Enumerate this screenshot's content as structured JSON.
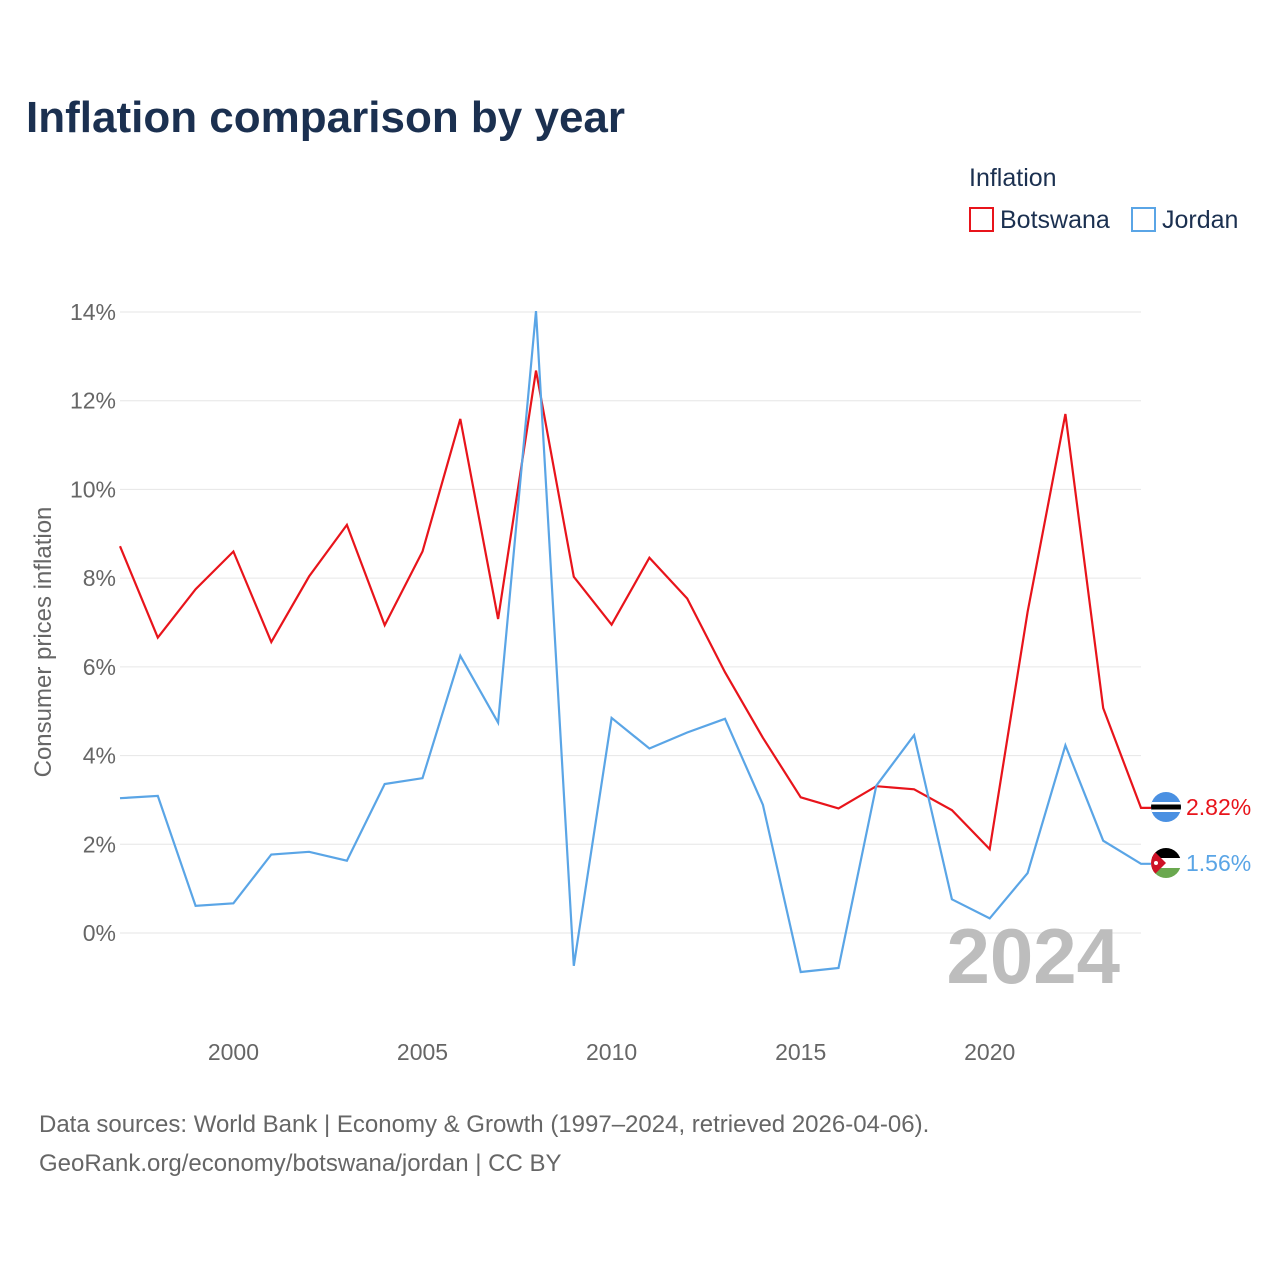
{
  "chart_data": {
    "type": "line",
    "title": "Inflation comparison by year",
    "legend_title": "Inflation",
    "legend_position": "top-right",
    "xlabel": "",
    "ylabel": "Consumer prices inflation",
    "xlim": [
      1997,
      2024
    ],
    "ylim": [
      -2,
      14
    ],
    "x_ticks": [
      2000,
      2005,
      2010,
      2015,
      2020
    ],
    "y_ticks": [
      0,
      2,
      4,
      6,
      8,
      10,
      12,
      14
    ],
    "y_tick_format": "percent",
    "grid": true,
    "highlight_year": "2024",
    "x": [
      1997,
      1998,
      1999,
      2000,
      2001,
      2002,
      2003,
      2004,
      2005,
      2006,
      2007,
      2008,
      2009,
      2010,
      2011,
      2012,
      2013,
      2014,
      2015,
      2016,
      2017,
      2018,
      2019,
      2020,
      2021,
      2022,
      2023,
      2024
    ],
    "series": [
      {
        "name": "Botswana",
        "color": "#e8141b",
        "end_label": "2.82%",
        "flag": "botswana-flag",
        "values": [
          8.72,
          6.66,
          7.75,
          8.6,
          6.56,
          8.04,
          9.2,
          6.94,
          8.6,
          11.59,
          7.08,
          12.68,
          8.03,
          6.95,
          8.46,
          7.54,
          5.88,
          4.4,
          3.06,
          2.81,
          3.31,
          3.24,
          2.77,
          1.89,
          7.24,
          11.7,
          5.07,
          2.82
        ]
      },
      {
        "name": "Jordan",
        "color": "#5aa5e6",
        "end_label": "1.56%",
        "flag": "jordan-flag",
        "values": [
          3.04,
          3.09,
          0.61,
          0.67,
          1.77,
          1.83,
          1.63,
          3.36,
          3.49,
          6.25,
          4.74,
          14.02,
          -0.74,
          4.85,
          4.16,
          4.52,
          4.83,
          2.89,
          -0.88,
          -0.79,
          3.32,
          4.46,
          0.76,
          0.33,
          1.35,
          4.23,
          2.08,
          1.56
        ]
      }
    ]
  },
  "source": {
    "line1": "Data sources: World Bank | Economy & Growth (1997–2024, retrieved 2026-04-06).",
    "line2": "GeoRank.org/economy/botswana/jordan | CC BY"
  }
}
